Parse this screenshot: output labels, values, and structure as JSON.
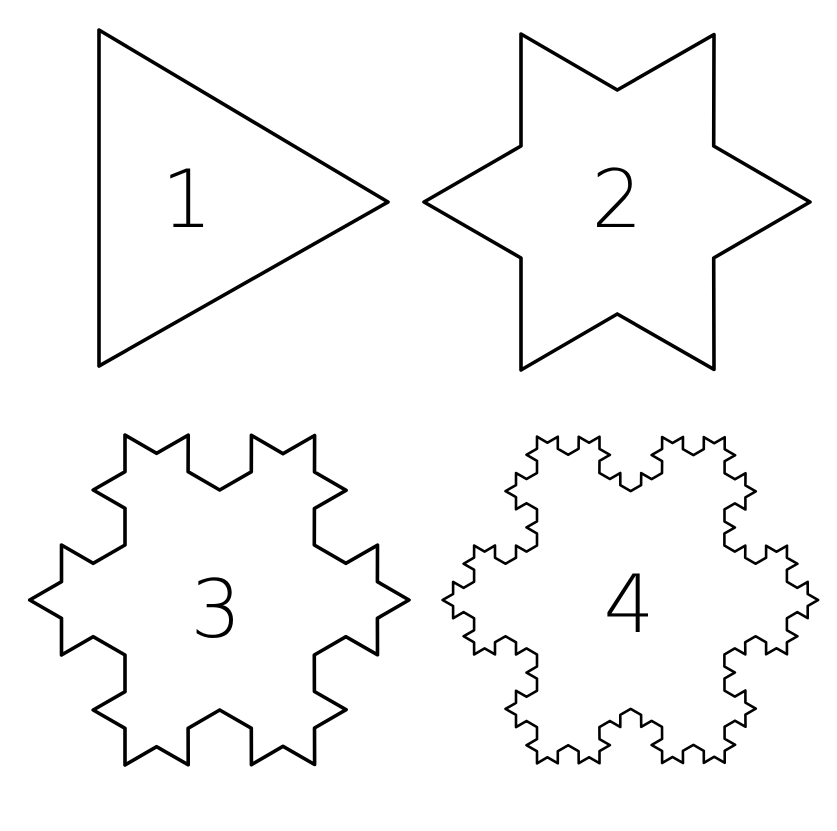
{
  "figures": [
    {
      "iteration": 1,
      "label": "1"
    },
    {
      "iteration": 2,
      "label": "2"
    },
    {
      "iteration": 3,
      "label": "3"
    },
    {
      "iteration": 4,
      "label": "4"
    }
  ],
  "colors": {
    "stroke": "#000000",
    "background": "#ffffff"
  }
}
